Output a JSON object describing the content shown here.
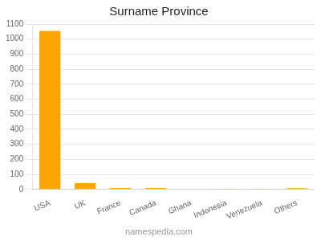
{
  "chart_data": {
    "type": "bar",
    "title": "Surname Province",
    "categories": [
      "USA",
      "UK",
      "France",
      "Canada",
      "Ghana",
      "Indonesia",
      "Venezuela",
      "Others"
    ],
    "values": [
      1055,
      42,
      10,
      10,
      3,
      2,
      4,
      8
    ],
    "color": "#FFA500",
    "ylim": [
      0,
      1100
    ],
    "yticks": [
      0,
      100,
      200,
      300,
      400,
      500,
      600,
      700,
      800,
      900,
      1000,
      1100
    ],
    "grid": true,
    "annotations": [
      "namespedia.com"
    ]
  }
}
